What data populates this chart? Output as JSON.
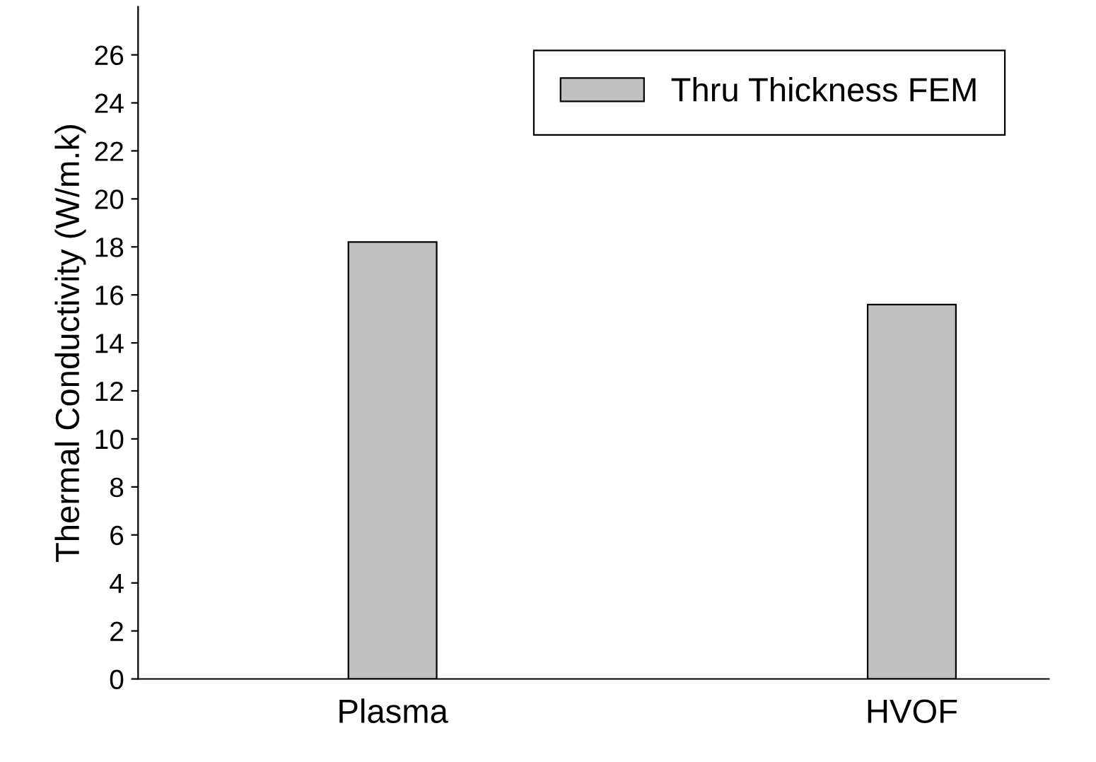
{
  "chart_data": {
    "type": "bar",
    "ylabel": "Thermal Conductivity (W/m.k)",
    "categories": [
      "Plasma",
      "HVOF"
    ],
    "series": [
      {
        "name": "Thru Thickness FEM",
        "color": "#c0c0c0",
        "values": [
          18.2,
          15.6
        ]
      }
    ],
    "ylim": [
      0,
      28
    ],
    "yticks": [
      0,
      2,
      4,
      6,
      8,
      10,
      12,
      14,
      16,
      18,
      20,
      22,
      24,
      26
    ],
    "grid": false,
    "legend": "top right"
  }
}
